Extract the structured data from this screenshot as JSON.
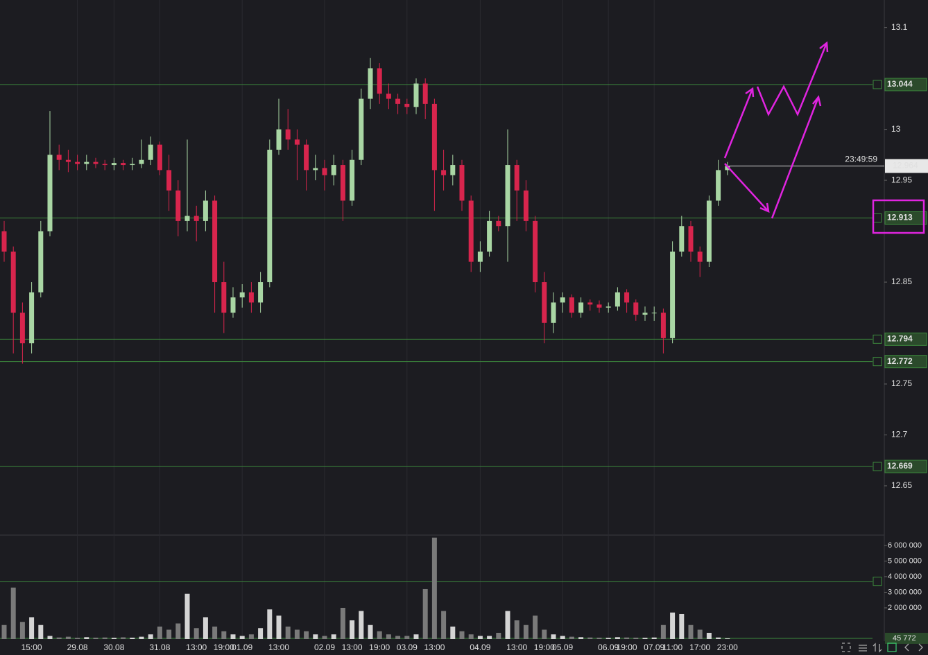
{
  "chart_data": {
    "type": "candlestick",
    "categories": [
      null,
      null,
      null,
      "15:00",
      null,
      null,
      null,
      null,
      "29.08",
      null,
      null,
      null,
      "30.08",
      null,
      null,
      null,
      null,
      "31.08",
      null,
      null,
      null,
      "13:00",
      null,
      null,
      "19:00",
      null,
      "01.09",
      null,
      null,
      null,
      "13:00",
      null,
      null,
      null,
      null,
      "02.09",
      null,
      null,
      "13:00",
      null,
      null,
      "19:00",
      null,
      null,
      "03.09",
      null,
      null,
      "13:00",
      null,
      null,
      null,
      null,
      "04.09",
      null,
      null,
      null,
      "13:00",
      null,
      null,
      "19:00",
      null,
      "05.09",
      null,
      null,
      null,
      null,
      "06.09",
      null,
      "19:00",
      null,
      null,
      "07.09",
      null,
      "11:00",
      null,
      null,
      "17:00",
      null,
      null,
      "23:00"
    ],
    "open": [
      12.9,
      12.88,
      12.82,
      12.79,
      12.84,
      12.9,
      12.975,
      12.97,
      12.968,
      12.966,
      12.968,
      12.966,
      12.965,
      12.967,
      12.965,
      12.966,
      12.97,
      12.985,
      12.96,
      12.94,
      12.91,
      12.915,
      12.91,
      12.93,
      12.85,
      12.82,
      12.835,
      12.84,
      12.83,
      12.85,
      12.98,
      13.0,
      12.99,
      12.985,
      12.96,
      12.962,
      12.955,
      12.965,
      12.93,
      12.97,
      13.03,
      13.06,
      13.035,
      13.03,
      13.025,
      13.022,
      13.045,
      13.025,
      12.96,
      12.955,
      12.965,
      12.93,
      12.87,
      12.88,
      12.91,
      12.905,
      12.965,
      12.94,
      12.91,
      12.85,
      12.81,
      12.83,
      12.835,
      12.82,
      12.83,
      12.828,
      12.825,
      12.826,
      12.84,
      12.83,
      12.818,
      12.82,
      12.82,
      12.795,
      12.88,
      12.905,
      12.88,
      12.87,
      12.93,
      12.96
    ],
    "high": [
      12.91,
      12.885,
      12.83,
      12.85,
      12.91,
      13.018,
      12.985,
      12.98,
      12.975,
      12.975,
      12.972,
      12.97,
      12.972,
      12.97,
      12.972,
      12.99,
      12.993,
      12.988,
      12.975,
      12.95,
      12.99,
      12.925,
      12.94,
      12.935,
      12.87,
      12.845,
      12.848,
      12.85,
      12.86,
      12.99,
      13.03,
      13.02,
      13.0,
      12.99,
      12.975,
      12.97,
      12.975,
      12.97,
      12.98,
      13.04,
      13.07,
      13.065,
      13.045,
      13.035,
      13.03,
      13.05,
      13.05,
      13.03,
      12.98,
      12.975,
      12.97,
      12.935,
      12.89,
      12.92,
      12.915,
      13.0,
      12.97,
      12.95,
      12.915,
      12.86,
      12.84,
      12.84,
      12.838,
      12.835,
      12.833,
      12.832,
      12.83,
      12.845,
      12.843,
      12.833,
      12.826,
      12.826,
      12.824,
      12.89,
      12.915,
      12.91,
      12.885,
      12.935,
      12.97,
      12.968
    ],
    "low": [
      12.87,
      12.78,
      12.77,
      12.78,
      12.835,
      12.895,
      12.96,
      12.958,
      12.96,
      12.96,
      12.962,
      12.96,
      12.96,
      12.96,
      12.96,
      12.962,
      12.965,
      12.955,
      12.92,
      12.895,
      12.9,
      12.89,
      12.9,
      12.82,
      12.8,
      12.815,
      12.825,
      12.82,
      12.82,
      12.845,
      12.975,
      12.98,
      12.95,
      12.94,
      12.95,
      12.94,
      12.945,
      12.91,
      12.925,
      12.965,
      13.02,
      13.025,
      13.02,
      13.015,
      13.015,
      13.015,
      13.01,
      12.92,
      12.94,
      12.945,
      12.92,
      12.86,
      12.86,
      12.875,
      12.9,
      12.87,
      12.91,
      12.9,
      12.84,
      12.79,
      12.8,
      12.82,
      12.815,
      12.815,
      12.822,
      12.82,
      12.82,
      12.822,
      12.82,
      12.812,
      12.812,
      12.812,
      12.78,
      12.79,
      12.875,
      12.87,
      12.855,
      12.865,
      12.925,
      12.955
    ],
    "close": [
      12.88,
      12.82,
      12.79,
      12.84,
      12.9,
      12.975,
      12.97,
      12.968,
      12.966,
      12.968,
      12.966,
      12.965,
      12.967,
      12.965,
      12.966,
      12.97,
      12.985,
      12.96,
      12.94,
      12.91,
      12.915,
      12.91,
      12.93,
      12.85,
      12.82,
      12.835,
      12.84,
      12.83,
      12.85,
      12.98,
      13.0,
      12.99,
      12.985,
      12.96,
      12.962,
      12.955,
      12.965,
      12.93,
      12.97,
      13.03,
      13.06,
      13.035,
      13.03,
      13.025,
      13.022,
      13.045,
      13.025,
      12.96,
      12.955,
      12.965,
      12.93,
      12.87,
      12.88,
      12.91,
      12.905,
      12.965,
      12.94,
      12.91,
      12.85,
      12.81,
      12.83,
      12.835,
      12.82,
      12.83,
      12.828,
      12.825,
      12.826,
      12.84,
      12.83,
      12.818,
      12.82,
      12.82,
      12.795,
      12.88,
      12.905,
      12.88,
      12.87,
      12.93,
      12.96,
      12.964
    ],
    "volume": [
      900000,
      3300000,
      1100000,
      1400000,
      900000,
      200000,
      100000,
      150000,
      80000,
      120000,
      90000,
      100000,
      80000,
      110000,
      90000,
      150000,
      300000,
      800000,
      600000,
      1000000,
      2900000,
      700000,
      1400000,
      800000,
      500000,
      300000,
      200000,
      300000,
      700000,
      1900000,
      1500000,
      800000,
      600000,
      500000,
      300000,
      200000,
      300000,
      2000000,
      1200000,
      1800000,
      900000,
      500000,
      300000,
      200000,
      200000,
      300000,
      3200000,
      6500000,
      1800000,
      800000,
      500000,
      300000,
      200000,
      200000,
      400000,
      1800000,
      1200000,
      900000,
      1500000,
      600000,
      300000,
      200000,
      150000,
      120000,
      100000,
      90000,
      80000,
      120000,
      100000,
      90000,
      80000,
      100000,
      900000,
      1700000,
      1600000,
      900000,
      600000,
      400000,
      100000,
      45772
    ],
    "up_color": "#a9d6a4",
    "down_color": "#d8254d",
    "volume_up_color": "#d4d4d4",
    "volume_down_color": "#7a7a7a",
    "ylim": [
      12.603,
      13.127
    ],
    "yticks": [
      12.65,
      12.7,
      12.75,
      12.85,
      12.95,
      13,
      13.1
    ],
    "volume_ylim": [
      0,
      6530000
    ],
    "volume_ticks": [
      {
        "value": 2000000,
        "label": "2 000 000"
      },
      {
        "value": 3000000,
        "label": "3 000 000"
      },
      {
        "value": 4000000,
        "label": "4 000 000"
      },
      {
        "value": 5000000,
        "label": "5 000 000"
      },
      {
        "value": 6000000,
        "label": "6 000 000"
      }
    ],
    "price_levels": [
      13.044,
      12.913,
      12.794,
      12.772,
      12.669
    ],
    "volume_levels": [
      3700000
    ],
    "last_price": 12.964,
    "countdown": "23:49:59",
    "last_volume": {
      "value": 45772,
      "label": "45 772"
    },
    "level_color": "#3d8a3d",
    "date_color": "#e05ce0"
  }
}
